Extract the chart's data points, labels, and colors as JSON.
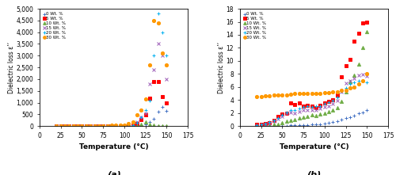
{
  "panel_a": {
    "title": "(a)",
    "xlabel": "Temperature (°C)",
    "ylabel": "Dielectric loss ε’’",
    "xlim": [
      0,
      175
    ],
    "ylim": [
      0,
      5000
    ],
    "yticks": [
      0,
      500,
      1000,
      1500,
      2000,
      2500,
      3000,
      3500,
      4000,
      4500,
      5000
    ],
    "xticks": [
      0,
      25,
      50,
      75,
      100,
      125,
      150,
      175
    ],
    "series": {
      "0 Wt. %": {
        "color": "#4472C4",
        "marker": "+",
        "ms": 3.5,
        "x": [
          20,
          25,
          30,
          35,
          40,
          45,
          50,
          55,
          60,
          65,
          70,
          75,
          80,
          85,
          90,
          95,
          100,
          105,
          110,
          115,
          120,
          125,
          130,
          135,
          140,
          145,
          150
        ],
        "y": [
          2,
          2,
          2,
          2,
          2,
          2,
          2,
          2,
          2,
          2,
          2,
          2,
          2,
          2,
          2,
          2,
          2,
          2,
          5,
          15,
          40,
          80,
          180,
          320,
          600,
          820,
          650
        ]
      },
      "5 Wt. %": {
        "color": "#FF0000",
        "marker": "s",
        "ms": 3,
        "x": [
          20,
          25,
          30,
          35,
          40,
          45,
          50,
          55,
          60,
          65,
          70,
          75,
          80,
          85,
          90,
          95,
          100,
          105,
          110,
          115,
          120,
          125,
          130,
          135,
          140,
          145,
          150
        ],
        "y": [
          5,
          5,
          5,
          5,
          5,
          5,
          5,
          5,
          5,
          5,
          5,
          5,
          5,
          5,
          5,
          5,
          10,
          20,
          50,
          120,
          280,
          480,
          1200,
          1900,
          1900,
          1250,
          1000
        ]
      },
      "10 Wt. %": {
        "color": "#70AD47",
        "marker": "^",
        "ms": 3,
        "x": [
          20,
          25,
          30,
          35,
          40,
          45,
          50,
          55,
          60,
          65,
          70,
          75,
          80,
          85,
          90,
          95,
          100,
          105,
          110,
          115,
          120,
          125,
          130,
          135,
          140,
          145,
          150
        ],
        "y": [
          2,
          2,
          2,
          2,
          2,
          2,
          2,
          2,
          2,
          2,
          2,
          2,
          2,
          2,
          2,
          2,
          3,
          5,
          10,
          20,
          60,
          180,
          80,
          40,
          20,
          10,
          8
        ]
      },
      "15 Wt. %": {
        "color": "#9B59B6",
        "marker": "x",
        "ms": 3.5,
        "x": [
          20,
          25,
          30,
          35,
          40,
          45,
          50,
          55,
          60,
          65,
          70,
          75,
          80,
          85,
          90,
          95,
          100,
          105,
          110,
          115,
          120,
          125,
          130,
          135,
          140,
          145,
          150
        ],
        "y": [
          2,
          2,
          2,
          2,
          2,
          2,
          2,
          2,
          2,
          2,
          2,
          2,
          2,
          2,
          5,
          8,
          15,
          40,
          80,
          180,
          380,
          550,
          1800,
          2400,
          3500,
          3000,
          2000
        ]
      },
      "20 Wt. %": {
        "color": "#00B0F0",
        "marker": "+",
        "ms": 3.5,
        "x": [
          20,
          25,
          30,
          35,
          40,
          45,
          50,
          55,
          60,
          65,
          70,
          75,
          80,
          85,
          90,
          95,
          100,
          105,
          110,
          115,
          120,
          125,
          130,
          135,
          140,
          145,
          150
        ],
        "y": [
          2,
          2,
          2,
          2,
          2,
          2,
          2,
          2,
          2,
          2,
          2,
          2,
          2,
          2,
          2,
          5,
          10,
          25,
          50,
          130,
          380,
          680,
          1100,
          3000,
          4800,
          4000,
          3000
        ]
      },
      "30 Wt. %": {
        "color": "#FF9900",
        "marker": "o",
        "ms": 3,
        "x": [
          20,
          25,
          30,
          35,
          40,
          45,
          50,
          55,
          60,
          65,
          70,
          75,
          80,
          85,
          90,
          95,
          100,
          105,
          110,
          115,
          120,
          125,
          130,
          135,
          140,
          145,
          150
        ],
        "y": [
          8,
          8,
          8,
          10,
          10,
          10,
          12,
          12,
          15,
          15,
          18,
          18,
          20,
          22,
          25,
          30,
          50,
          90,
          180,
          480,
          680,
          1150,
          2600,
          4500,
          4400,
          3100,
          2600
        ]
      }
    }
  },
  "panel_b": {
    "title": "(b)",
    "xlabel": "Temperature (°C)",
    "ylabel": "Dielectric loss ε’’",
    "xlim": [
      0,
      175
    ],
    "ylim": [
      0,
      18
    ],
    "yticks": [
      0,
      2,
      4,
      6,
      8,
      10,
      12,
      14,
      16,
      18
    ],
    "xticks": [
      0,
      25,
      50,
      75,
      100,
      125,
      150,
      175
    ],
    "series": {
      "0 Wt. %": {
        "color": "#4472C4",
        "marker": "+",
        "ms": 3.5,
        "x": [
          20,
          25,
          30,
          35,
          40,
          45,
          50,
          55,
          60,
          65,
          70,
          75,
          80,
          85,
          90,
          95,
          100,
          105,
          110,
          115,
          120,
          125,
          130,
          135,
          140,
          145,
          150
        ],
        "y": [
          0.05,
          0.05,
          0.05,
          0.05,
          0.05,
          0.05,
          0.05,
          0.05,
          0.1,
          0.1,
          0.1,
          0.15,
          0.15,
          0.2,
          0.2,
          0.3,
          0.4,
          0.5,
          0.6,
          0.8,
          1.0,
          1.2,
          1.4,
          1.6,
          1.9,
          2.1,
          2.4
        ]
      },
      "5 Wt. %": {
        "color": "#FF0000",
        "marker": "s",
        "ms": 3,
        "x": [
          20,
          25,
          30,
          35,
          40,
          45,
          50,
          55,
          60,
          65,
          70,
          75,
          80,
          85,
          90,
          95,
          100,
          105,
          110,
          115,
          120,
          125,
          130,
          135,
          140,
          145,
          150
        ],
        "y": [
          0.3,
          0.3,
          0.4,
          0.5,
          0.9,
          1.5,
          1.8,
          2.0,
          3.5,
          3.3,
          3.5,
          3.0,
          3.2,
          3.0,
          2.8,
          3.2,
          3.5,
          3.8,
          4.0,
          4.8,
          7.5,
          9.2,
          10.2,
          13.0,
          14.2,
          15.8,
          16.0
        ]
      },
      "10 Wt. %": {
        "color": "#70AD47",
        "marker": "^",
        "ms": 3,
        "x": [
          20,
          25,
          30,
          35,
          40,
          45,
          50,
          55,
          60,
          65,
          70,
          75,
          80,
          85,
          90,
          95,
          100,
          105,
          110,
          115,
          120,
          125,
          130,
          135,
          140,
          145,
          150
        ],
        "y": [
          0.05,
          0.05,
          0.1,
          0.15,
          0.2,
          0.3,
          0.5,
          0.7,
          0.9,
          1.0,
          1.2,
          1.3,
          1.5,
          1.7,
          1.6,
          1.8,
          2.0,
          2.2,
          2.5,
          2.8,
          3.8,
          5.2,
          6.8,
          7.8,
          9.5,
          12.0,
          14.5
        ]
      },
      "15 Wt. %": {
        "color": "#9B59B6",
        "marker": "x",
        "ms": 3.5,
        "x": [
          20,
          25,
          30,
          35,
          40,
          45,
          50,
          55,
          60,
          65,
          70,
          75,
          80,
          85,
          90,
          95,
          100,
          105,
          110,
          115,
          120,
          125,
          130,
          135,
          140,
          145,
          150
        ],
        "y": [
          0.05,
          0.1,
          0.2,
          0.4,
          0.7,
          1.1,
          1.5,
          1.9,
          2.1,
          2.0,
          2.2,
          2.4,
          2.4,
          2.5,
          2.5,
          2.7,
          2.9,
          3.1,
          3.4,
          3.9,
          5.3,
          6.6,
          6.9,
          7.3,
          7.8,
          7.9,
          7.7
        ]
      },
      "20 Wt. %": {
        "color": "#00B0F0",
        "marker": "+",
        "ms": 3.5,
        "x": [
          20,
          25,
          30,
          35,
          40,
          45,
          50,
          55,
          60,
          65,
          70,
          75,
          80,
          85,
          90,
          95,
          100,
          105,
          110,
          115,
          120,
          125,
          130,
          135,
          140,
          145,
          150
        ],
        "y": [
          0.1,
          0.2,
          0.4,
          0.6,
          0.9,
          1.2,
          1.7,
          2.1,
          2.4,
          2.4,
          2.7,
          2.9,
          3.0,
          2.9,
          3.1,
          3.1,
          3.4,
          3.7,
          3.9,
          4.4,
          5.4,
          5.9,
          6.4,
          6.7,
          6.9,
          6.9,
          6.7
        ]
      },
      "30 Wt. %": {
        "color": "#FF9900",
        "marker": "o",
        "ms": 3,
        "x": [
          20,
          25,
          30,
          35,
          40,
          45,
          50,
          55,
          60,
          65,
          70,
          75,
          80,
          85,
          90,
          95,
          100,
          105,
          110,
          115,
          120,
          125,
          130,
          135,
          140,
          145,
          150
        ],
        "y": [
          4.5,
          4.5,
          4.6,
          4.6,
          4.7,
          4.7,
          4.8,
          4.8,
          4.9,
          5.0,
          5.0,
          5.0,
          5.0,
          5.0,
          5.0,
          5.0,
          5.1,
          5.1,
          5.2,
          5.3,
          5.5,
          5.5,
          5.8,
          6.0,
          6.5,
          7.0,
          8.0
        ]
      }
    }
  },
  "legend_order": [
    "0 Wt. %",
    "5 Wt. %",
    "10 Wt. %",
    "15 Wt. %",
    "20 Wt. %",
    "30 Wt. %"
  ]
}
